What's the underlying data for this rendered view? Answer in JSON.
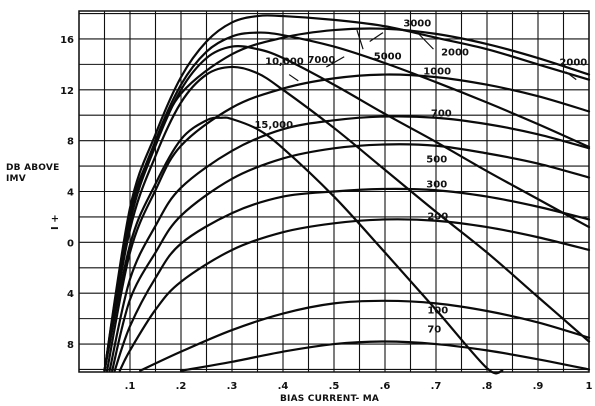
{
  "chart_data": {
    "type": "line",
    "title": "",
    "xlabel": "BIAS CURRENT- MA",
    "ylabel": [
      "DB ABOVE",
      "IMV"
    ],
    "sign_label": "I +",
    "x_ticks": [
      ".1",
      ".2",
      ".3",
      ".4",
      ".5",
      ".6",
      ".7",
      ".8",
      ".9",
      "1"
    ],
    "y_ticks": [
      {
        "value": 16,
        "label": "16"
      },
      {
        "value": 12,
        "label": "12"
      },
      {
        "value": 8,
        "label": "8"
      },
      {
        "value": 4,
        "label": "4"
      },
      {
        "value": 0,
        "label": "0"
      },
      {
        "value": -4,
        "label": "4"
      },
      {
        "value": -8,
        "label": "8"
      }
    ],
    "xlim": [
      0.0,
      1.0
    ],
    "ylim": [
      -10.2,
      18.2
    ],
    "grid": true,
    "series": [
      {
        "name": "70",
        "points": [
          [
            0.2,
            -10.1
          ],
          [
            0.3,
            -9.4
          ],
          [
            0.4,
            -8.6
          ],
          [
            0.5,
            -8.0
          ],
          [
            0.6,
            -7.8
          ],
          [
            0.7,
            -8.0
          ],
          [
            0.8,
            -8.5
          ],
          [
            0.9,
            -9.2
          ],
          [
            1.0,
            -10.0
          ]
        ]
      },
      {
        "name": "100",
        "points": [
          [
            0.12,
            -10.1
          ],
          [
            0.2,
            -8.6
          ],
          [
            0.3,
            -6.9
          ],
          [
            0.4,
            -5.6
          ],
          [
            0.5,
            -4.8
          ],
          [
            0.6,
            -4.6
          ],
          [
            0.7,
            -4.8
          ],
          [
            0.8,
            -5.4
          ],
          [
            0.9,
            -6.3
          ],
          [
            1.0,
            -7.5
          ]
        ]
      },
      {
        "name": "200",
        "points": [
          [
            0.08,
            -10.1
          ],
          [
            0.1,
            -8.5
          ],
          [
            0.15,
            -5.3
          ],
          [
            0.2,
            -3.1
          ],
          [
            0.3,
            -0.6
          ],
          [
            0.4,
            0.8
          ],
          [
            0.5,
            1.5
          ],
          [
            0.6,
            1.8
          ],
          [
            0.7,
            1.7
          ],
          [
            0.8,
            1.2
          ],
          [
            0.9,
            0.4
          ],
          [
            1.0,
            -0.6
          ]
        ]
      },
      {
        "name": "300",
        "points": [
          [
            0.07,
            -10.1
          ],
          [
            0.1,
            -6.6
          ],
          [
            0.15,
            -2.8
          ],
          [
            0.2,
            -0.1
          ],
          [
            0.3,
            2.3
          ],
          [
            0.4,
            3.6
          ],
          [
            0.5,
            4.0
          ],
          [
            0.6,
            4.2
          ],
          [
            0.7,
            4.1
          ],
          [
            0.8,
            3.6
          ],
          [
            0.9,
            2.8
          ],
          [
            1.0,
            1.8
          ]
        ]
      },
      {
        "name": "500",
        "points": [
          [
            0.065,
            -10.1
          ],
          [
            0.1,
            -4.5
          ],
          [
            0.15,
            -0.8
          ],
          [
            0.2,
            2.1
          ],
          [
            0.3,
            5.0
          ],
          [
            0.4,
            6.6
          ],
          [
            0.5,
            7.4
          ],
          [
            0.6,
            7.7
          ],
          [
            0.7,
            7.6
          ],
          [
            0.8,
            7.0
          ],
          [
            0.9,
            6.2
          ],
          [
            1.0,
            5.1
          ]
        ]
      },
      {
        "name": "700",
        "points": [
          [
            0.06,
            -10.1
          ],
          [
            0.1,
            -2.9
          ],
          [
            0.15,
            1.3
          ],
          [
            0.2,
            4.3
          ],
          [
            0.3,
            7.2
          ],
          [
            0.4,
            8.9
          ],
          [
            0.5,
            9.6
          ],
          [
            0.6,
            9.9
          ],
          [
            0.7,
            9.8
          ],
          [
            0.8,
            9.3
          ],
          [
            0.9,
            8.5
          ],
          [
            1.0,
            7.4
          ]
        ]
      },
      {
        "name": "1000",
        "points": [
          [
            0.055,
            -10.1
          ],
          [
            0.1,
            -0.8
          ],
          [
            0.15,
            4.1
          ],
          [
            0.2,
            7.6
          ],
          [
            0.3,
            10.6
          ],
          [
            0.4,
            12.1
          ],
          [
            0.5,
            12.9
          ],
          [
            0.6,
            13.2
          ],
          [
            0.7,
            13.0
          ],
          [
            0.8,
            12.4
          ],
          [
            0.9,
            11.5
          ],
          [
            1.0,
            10.3
          ]
        ]
      },
      {
        "name": "2000",
        "points": [
          [
            0.05,
            -10.1
          ],
          [
            0.1,
            2.3
          ],
          [
            0.15,
            7.7
          ],
          [
            0.2,
            11.7
          ],
          [
            0.3,
            14.8
          ],
          [
            0.4,
            16.1
          ],
          [
            0.5,
            16.7
          ],
          [
            0.6,
            16.8
          ],
          [
            0.7,
            16.4
          ],
          [
            0.8,
            15.6
          ],
          [
            0.9,
            14.5
          ],
          [
            1.0,
            13.2
          ]
        ]
      },
      {
        "name": "3000",
        "points": [
          [
            0.05,
            -10.1
          ],
          [
            0.1,
            2.7
          ],
          [
            0.15,
            8.5
          ],
          [
            0.2,
            13.0
          ],
          [
            0.25,
            15.8
          ],
          [
            0.3,
            17.3
          ],
          [
            0.35,
            17.8
          ],
          [
            0.4,
            17.8
          ],
          [
            0.5,
            17.5
          ],
          [
            0.6,
            17.0
          ],
          [
            0.7,
            16.1
          ],
          [
            0.8,
            15.2
          ],
          [
            0.9,
            14.0
          ],
          [
            1.0,
            12.8
          ]
        ]
      },
      {
        "name": "5000",
        "points": [
          [
            0.05,
            -10.1
          ],
          [
            0.1,
            2.0
          ],
          [
            0.15,
            8.0
          ],
          [
            0.2,
            12.4
          ],
          [
            0.25,
            15.0
          ],
          [
            0.3,
            16.2
          ],
          [
            0.35,
            16.5
          ],
          [
            0.4,
            16.3
          ],
          [
            0.5,
            15.4
          ],
          [
            0.6,
            14.1
          ],
          [
            0.7,
            12.6
          ],
          [
            0.8,
            11.0
          ],
          [
            0.9,
            9.3
          ],
          [
            1.0,
            7.5
          ]
        ]
      },
      {
        "name": "7000",
        "points": [
          [
            0.05,
            -10.1
          ],
          [
            0.1,
            1.6
          ],
          [
            0.15,
            7.6
          ],
          [
            0.2,
            12.0
          ],
          [
            0.25,
            14.5
          ],
          [
            0.3,
            15.4
          ],
          [
            0.35,
            15.2
          ],
          [
            0.4,
            14.5
          ],
          [
            0.5,
            12.4
          ],
          [
            0.6,
            10.1
          ],
          [
            0.7,
            7.9
          ],
          [
            0.8,
            5.6
          ],
          [
            0.9,
            3.4
          ],
          [
            1.0,
            1.2
          ]
        ]
      },
      {
        "name": "10,000",
        "points": [
          [
            0.05,
            -10.1
          ],
          [
            0.1,
            1.0
          ],
          [
            0.15,
            6.8
          ],
          [
            0.2,
            11.0
          ],
          [
            0.25,
            13.2
          ],
          [
            0.3,
            13.8
          ],
          [
            0.35,
            13.3
          ],
          [
            0.4,
            12.0
          ],
          [
            0.5,
            9.0
          ],
          [
            0.6,
            5.7
          ],
          [
            0.7,
            2.4
          ],
          [
            0.8,
            -0.8
          ],
          [
            0.9,
            -4.3
          ],
          [
            1.0,
            -7.8
          ]
        ]
      },
      {
        "name": "15,000",
        "points": [
          [
            0.05,
            -10.1
          ],
          [
            0.1,
            -0.2
          ],
          [
            0.15,
            4.6
          ],
          [
            0.2,
            8.1
          ],
          [
            0.25,
            9.6
          ],
          [
            0.28,
            9.8
          ],
          [
            0.3,
            9.7
          ],
          [
            0.35,
            8.9
          ],
          [
            0.4,
            7.4
          ],
          [
            0.5,
            3.6
          ],
          [
            0.6,
            -0.8
          ],
          [
            0.7,
            -5.3
          ],
          [
            0.8,
            -9.9
          ],
          [
            0.83,
            -10.1
          ]
        ]
      }
    ],
    "curve_labels": [
      {
        "text": "3000",
        "x": 0.636,
        "y": 17.0,
        "pointer": [
          0.596,
          16.5,
          0.57,
          15.8
        ]
      },
      {
        "text": "5000",
        "x": 0.578,
        "y": 14.4,
        "pointer": [
          0.557,
          15.2,
          0.545,
          16.7
        ]
      },
      {
        "text": "2000",
        "x": 0.71,
        "y": 14.7,
        "pointer": [
          0.695,
          15.2,
          0.666,
          16.4
        ]
      },
      {
        "text": "2000",
        "x": 0.942,
        "y": 13.9,
        "pointer": [
          0.955,
          13.4,
          0.975,
          12.8
        ]
      },
      {
        "text": "10,000",
        "x": 0.365,
        "y": 14.0,
        "pointer": [
          0.412,
          13.2,
          0.43,
          12.7
        ]
      },
      {
        "text": "7000",
        "x": 0.448,
        "y": 14.1,
        "pointer": [
          0.485,
          13.8,
          0.52,
          14.6
        ]
      },
      {
        "text": "1000",
        "x": 0.675,
        "y": 13.2,
        "pointer": []
      },
      {
        "text": "700",
        "x": 0.69,
        "y": 9.9,
        "pointer": []
      },
      {
        "text": "15,000",
        "x": 0.344,
        "y": 9.0,
        "pointer": []
      },
      {
        "text": "500",
        "x": 0.681,
        "y": 6.3,
        "pointer": []
      },
      {
        "text": "300",
        "x": 0.681,
        "y": 4.3,
        "pointer": []
      },
      {
        "text": "200",
        "x": 0.683,
        "y": 1.8,
        "pointer": []
      },
      {
        "text": "100",
        "x": 0.683,
        "y": -5.6,
        "pointer": []
      },
      {
        "text": "70",
        "x": 0.683,
        "y": -7.1,
        "pointer": []
      }
    ]
  }
}
